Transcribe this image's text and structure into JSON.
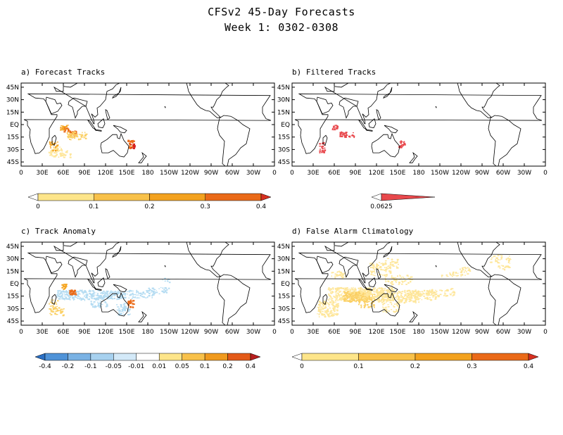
{
  "title": "CFSv2 45-Day Forecasts",
  "subtitle": "Week 1: 0302-0308",
  "lat_labels": [
    "45N",
    "30N",
    "15N",
    "EQ",
    "15S",
    "30S",
    "45S"
  ],
  "lon_labels": [
    "0",
    "30E",
    "60E",
    "90E",
    "120E",
    "150E",
    "180",
    "150W",
    "120W",
    "90W",
    "60W",
    "30W",
    "0"
  ],
  "colors": {
    "land_outline": "#000000",
    "track_low": "#ffe58a",
    "track_mid": "#f5a623",
    "track_high": "#e6551a",
    "track_max": "#d62020",
    "anomaly_neg": "#a9d8f0"
  },
  "panels": [
    {
      "id": "a",
      "title": "a) Forecast Tracks",
      "colorbar": {
        "labels": [
          "0",
          "0.1",
          "0.2",
          "0.3",
          "0.4"
        ],
        "colors": [
          "#ffffff",
          "#fde58a",
          "#f8c14a",
          "#f3a21f",
          "#ea6a18",
          "#d62f20"
        ]
      }
    },
    {
      "id": "b",
      "title": "b) Filtered Tracks",
      "colorbar": {
        "labels": [
          "0.0625"
        ],
        "colors": [
          "#ffffff",
          "#e8484c"
        ]
      }
    },
    {
      "id": "c",
      "title": "c) Track Anomaly",
      "colorbar": {
        "labels": [
          "-0.4",
          "-0.2",
          "-0.1",
          "-0.05",
          "-0.01",
          "0.01",
          "0.05",
          "0.1",
          "0.2",
          "0.4"
        ],
        "colors": [
          "#2a6fc4",
          "#4f93d8",
          "#7ab2e4",
          "#a7d1ef",
          "#d3e9f8",
          "#ffffff",
          "#fde58a",
          "#f8c14a",
          "#f09a1e",
          "#e35a18",
          "#b81e1e"
        ]
      }
    },
    {
      "id": "d",
      "title": "d) False Alarm Climatology",
      "colorbar": {
        "labels": [
          "0",
          "0.1",
          "0.2",
          "0.3",
          "0.4"
        ],
        "colors": [
          "#ffffff",
          "#fde58a",
          "#f8c14a",
          "#f3a21f",
          "#ea6a18",
          "#d62f20"
        ]
      }
    }
  ]
}
